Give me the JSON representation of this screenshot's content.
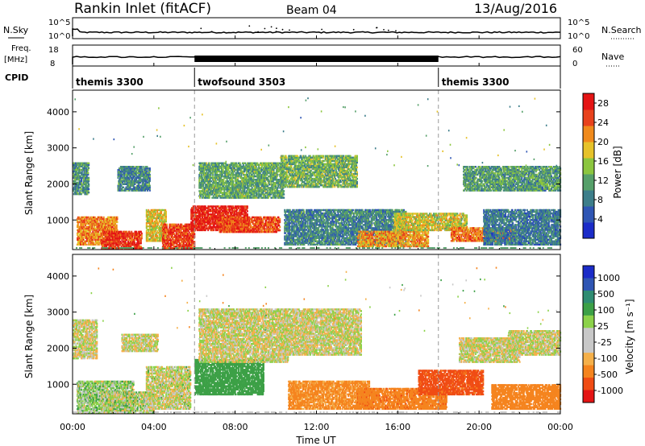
{
  "header": {
    "station": "Rankin Inlet (fitACF)",
    "beam": "Beam 04",
    "date": "13/Aug/2016"
  },
  "nsky_panel": {
    "left_label": "N.Sky",
    "right_label": "N.Search",
    "left_ticks": [
      "10^5",
      "10^0"
    ],
    "right_ticks": [
      "10^5",
      "10^0"
    ]
  },
  "freq_panel": {
    "left_label_1": "Freq.",
    "left_label_2": "[MHz]",
    "right_label": "Nave",
    "left_ticks": [
      "18",
      "8"
    ],
    "right_ticks": [
      "60",
      "0"
    ]
  },
  "cpid": {
    "label": "CPID",
    "segments": [
      {
        "name": "themis 3300",
        "start_hour": 0,
        "end_hour": 6
      },
      {
        "name": "twofsound 3503",
        "start_hour": 6,
        "end_hour": 18
      },
      {
        "name": "themis 3300",
        "start_hour": 18,
        "end_hour": 24
      }
    ]
  },
  "colors": {
    "power": [
      "#1b2cc8",
      "#2f56b4",
      "#3d7e8a",
      "#56a06a",
      "#8cc63f",
      "#e6c22a",
      "#f08a1c",
      "#e8421c",
      "#e41414"
    ],
    "velocity": [
      "#e41414",
      "#f04c14",
      "#f5841e",
      "#f5b04a",
      "#c8c8c8",
      "#c8c8c8",
      "#8cd24a",
      "#3ca046",
      "#2f8c72",
      "#2f56b4",
      "#1b2cc8"
    ]
  },
  "chart_data": [
    {
      "type": "heatmap",
      "title": "",
      "xlabel": "Time UT",
      "ylabel": "Slant Range [km]",
      "x_ticks": [
        "00:00",
        "04:00",
        "08:00",
        "12:00",
        "16:00",
        "20:00",
        "00:00"
      ],
      "y_ticks": [
        "1000",
        "2000",
        "3000",
        "4000"
      ],
      "xlim_hours": [
        0,
        24
      ],
      "ylim_km": [
        180,
        4600
      ],
      "colorbar": {
        "label": "Power [dB]",
        "ticks": [
          "4",
          "8",
          "12",
          "16",
          "20",
          "24",
          "28"
        ],
        "range": [
          0,
          30
        ]
      },
      "mode_change_lines_hours": [
        6,
        18
      ],
      "bands": [
        {
          "t0": 0.0,
          "t1": 0.8,
          "r0": 1700,
          "r1": 2600,
          "v": 10
        },
        {
          "t0": 0.2,
          "t1": 2.2,
          "r0": 300,
          "r1": 1100,
          "v": 22
        },
        {
          "t0": 1.4,
          "t1": 3.4,
          "r0": 200,
          "r1": 700,
          "v": 27
        },
        {
          "t0": 2.2,
          "t1": 3.8,
          "r0": 1800,
          "r1": 2500,
          "v": 9
        },
        {
          "t0": 3.6,
          "t1": 4.6,
          "r0": 400,
          "r1": 1300,
          "v": 18
        },
        {
          "t0": 4.4,
          "t1": 6.0,
          "r0": 200,
          "r1": 900,
          "v": 26
        },
        {
          "t0": 5.8,
          "t1": 8.6,
          "r0": 700,
          "r1": 1400,
          "v": 28
        },
        {
          "t0": 6.2,
          "t1": 10.4,
          "r0": 1600,
          "r1": 2600,
          "v": 12
        },
        {
          "t0": 7.2,
          "t1": 10.2,
          "r0": 650,
          "r1": 1100,
          "v": 25
        },
        {
          "t0": 10.2,
          "t1": 14.0,
          "r0": 1900,
          "r1": 2800,
          "v": 13
        },
        {
          "t0": 10.4,
          "t1": 16.4,
          "r0": 300,
          "r1": 1300,
          "v": 9
        },
        {
          "t0": 14.0,
          "t1": 17.5,
          "r0": 250,
          "r1": 700,
          "v": 21
        },
        {
          "t0": 15.8,
          "t1": 19.4,
          "r0": 700,
          "r1": 1200,
          "v": 17
        },
        {
          "t0": 18.6,
          "t1": 21.8,
          "r0": 400,
          "r1": 800,
          "v": 23
        },
        {
          "t0": 19.2,
          "t1": 24.0,
          "r0": 1800,
          "r1": 2500,
          "v": 11
        },
        {
          "t0": 20.2,
          "t1": 24.0,
          "r0": 300,
          "r1": 1300,
          "v": 8
        }
      ]
    },
    {
      "type": "heatmap",
      "title": "",
      "xlabel": "Time UT",
      "ylabel": "Slant Range [km]",
      "x_ticks": [
        "00:00",
        "04:00",
        "08:00",
        "12:00",
        "16:00",
        "20:00",
        "00:00"
      ],
      "y_ticks": [
        "1000",
        "2000",
        "3000",
        "4000"
      ],
      "xlim_hours": [
        0,
        24
      ],
      "ylim_km": [
        180,
        4600
      ],
      "colorbar": {
        "label": "Velocity [m s⁻¹]",
        "ticks": [
          "1000",
          "500",
          "100",
          "25",
          "-25",
          "-100",
          "-500",
          "-1000"
        ]
      },
      "mode_change_lines_hours": [
        6,
        18
      ],
      "bands": [
        {
          "t0": 0.0,
          "t1": 1.2,
          "r0": 1700,
          "r1": 2800,
          "v": 0
        },
        {
          "t0": 0.2,
          "t1": 3.0,
          "r0": 200,
          "r1": 1100,
          "v": 60
        },
        {
          "t0": 1.4,
          "t1": 4.0,
          "r0": 200,
          "r1": 800,
          "v": 30
        },
        {
          "t0": 2.4,
          "t1": 4.2,
          "r0": 1900,
          "r1": 2400,
          "v": 0
        },
        {
          "t0": 3.6,
          "t1": 5.8,
          "r0": 300,
          "r1": 1500,
          "v": 5
        },
        {
          "t0": 6.0,
          "t1": 9.4,
          "r0": 700,
          "r1": 1700,
          "v": 200
        },
        {
          "t0": 6.2,
          "t1": 10.6,
          "r0": 1600,
          "r1": 3100,
          "v": 0
        },
        {
          "t0": 10.4,
          "t1": 14.2,
          "r0": 1800,
          "r1": 3100,
          "v": 0
        },
        {
          "t0": 10.6,
          "t1": 14.6,
          "r0": 300,
          "r1": 1100,
          "v": -150
        },
        {
          "t0": 14.0,
          "t1": 18.4,
          "r0": 300,
          "r1": 900,
          "v": -220
        },
        {
          "t0": 17.0,
          "t1": 20.2,
          "r0": 700,
          "r1": 1400,
          "v": -380
        },
        {
          "t0": 19.0,
          "t1": 22.0,
          "r0": 1600,
          "r1": 2300,
          "v": 0
        },
        {
          "t0": 20.6,
          "t1": 24.0,
          "r0": 300,
          "r1": 1000,
          "v": -200
        },
        {
          "t0": 21.4,
          "t1": 24.0,
          "r0": 1800,
          "r1": 2500,
          "v": 0
        }
      ]
    }
  ]
}
